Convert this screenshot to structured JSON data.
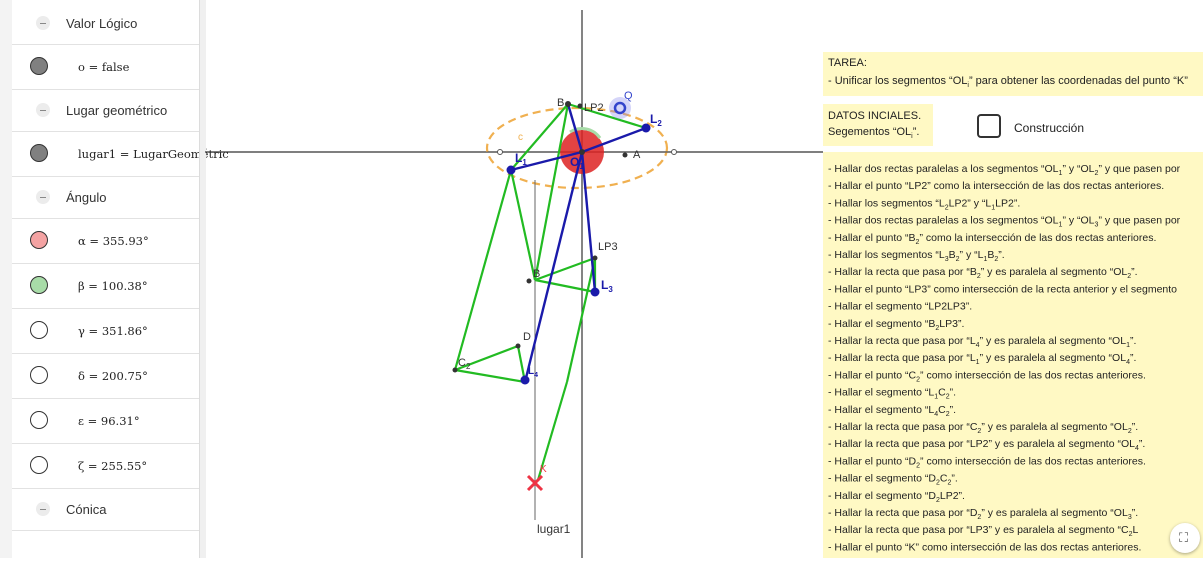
{
  "algebra": {
    "rows": [
      {
        "kind": "header",
        "label": "Valor Lógico"
      },
      {
        "kind": "item",
        "label": "o = false",
        "color": "#808080",
        "filled": true
      },
      {
        "kind": "header",
        "label": "Lugar geométrico"
      },
      {
        "kind": "item",
        "label": "lugar1 = LugarGeométric",
        "color": "#808080",
        "filled": true
      },
      {
        "kind": "header",
        "label": "Ángulo"
      },
      {
        "kind": "item",
        "label": "α = 355.93°",
        "color": "#f4a3a3",
        "filled": true
      },
      {
        "kind": "item",
        "label": "β = 100.38°",
        "color": "#a8dca8",
        "filled": true
      },
      {
        "kind": "item",
        "label": "γ = 351.86°",
        "color": "#ffffff",
        "filled": false
      },
      {
        "kind": "item",
        "label": "δ = 200.75°",
        "color": "#ffffff",
        "filled": false
      },
      {
        "kind": "item",
        "label": "ε = 96.31°",
        "color": "#ffffff",
        "filled": false
      },
      {
        "kind": "item",
        "label": "ζ = 255.55°",
        "color": "#ffffff",
        "filled": false
      },
      {
        "kind": "header",
        "label": "Cónica"
      }
    ]
  },
  "graphics": {
    "points": {
      "B": "B",
      "LP2": "LP2",
      "Q": "Q",
      "L2": "L",
      "L2_sub": "2",
      "L1": "L",
      "L1_sub": "1",
      "O": "O",
      "O_sub": "1",
      "A": "A",
      "LP3": "LP3",
      "B2": "B",
      "L3": "L",
      "L3_sub": "3",
      "D": "D",
      "C2": "C",
      "C2_sub": "2",
      "L4": "L",
      "L4_sub": "4",
      "K": "K",
      "lugar1": "lugar1",
      "c": "c"
    },
    "colors": {
      "green": "#22bb22",
      "blue": "#1a1aaa",
      "orange": "#f0b050",
      "red_fill": "#dd2222",
      "cursor": "#8888ee",
      "K_cross": "#ee3344",
      "axis": "#333333"
    }
  },
  "task": {
    "title": "TAREA:",
    "line_pre": "- Unificar los segmentos “OL",
    "line_sub": "i",
    "line_post": "” para obtener las coordenadas del punto “K”"
  },
  "data_box": {
    "title": "DATOS INCIALES.",
    "line_pre": "Segementos “OL",
    "line_sub": "i",
    "line_post": "”."
  },
  "checkbox": {
    "label": "Construcción",
    "checked": false
  },
  "steps": [
    [
      "- Hallar dos rectas paralelas a los segmentos “OL",
      {
        "s": "1"
      },
      "” y “OL",
      {
        "s": "2"
      },
      "” y que pasen por"
    ],
    [
      "- Hallar el punto “LP2” como la intersección de las dos rectas anteriores."
    ],
    [
      "- Hallar los segmentos “L",
      {
        "s": "2"
      },
      "LP2” y “L",
      {
        "s": "1"
      },
      "LP2”."
    ],
    [
      "- Hallar dos rectas paralelas a los segmentos “OL",
      {
        "s": "1"
      },
      "” y “OL",
      {
        "s": "3"
      },
      "” y que pasen por"
    ],
    [
      "- Hallar el punto “B",
      {
        "s": "2"
      },
      "” como la intersección de las dos rectas anteriores."
    ],
    [
      "- Hallar los segmentos “L",
      {
        "s": "3"
      },
      "B",
      {
        "s": "2"
      },
      "” y “L",
      {
        "s": "1"
      },
      "B",
      {
        "s": "2"
      },
      "”."
    ],
    [
      "- Hallar la recta que pasa por “B",
      {
        "s": "2"
      },
      "” y es paralela al segmento “OL",
      {
        "s": "2"
      },
      "”."
    ],
    [
      "- Hallar el punto “LP3” como intersección de la recta anterior y el segmento"
    ],
    [
      "- Hallar el segmento “LP2LP3”."
    ],
    [
      "- Hallar el segmento “B",
      {
        "s": "2"
      },
      "LP3”."
    ],
    [
      "- Hallar la recta que pasa por “L",
      {
        "s": "4"
      },
      "” y es paralela al segmento “OL",
      {
        "s": "1"
      },
      "”."
    ],
    [
      "- Hallar la recta que pasa por “L",
      {
        "s": "1"
      },
      "” y es paralela al segmento “OL",
      {
        "s": "4"
      },
      "”."
    ],
    [
      "- Hallar el punto “C",
      {
        "s": "2"
      },
      "” como intersección de las dos rectas anteriores."
    ],
    [
      "- Hallar el segmento “L",
      {
        "s": "1"
      },
      "C",
      {
        "s": "2"
      },
      "”."
    ],
    [
      "- Hallar el segmento “L",
      {
        "s": "4"
      },
      "C",
      {
        "s": "2"
      },
      "”."
    ],
    [
      "- Hallar la recta que pasa por “C",
      {
        "s": "2"
      },
      "” y es paralela al segmento “OL",
      {
        "s": "2"
      },
      "”."
    ],
    [
      "- Hallar la recta que pasa por “LP2” y es paralela al segmento “OL",
      {
        "s": "4"
      },
      "”."
    ],
    [
      "- Hallar el punto “D",
      {
        "s": "2"
      },
      "” como intersección de las dos rectas anteriores."
    ],
    [
      "- Hallar el segmento “D",
      {
        "s": "2"
      },
      "C",
      {
        "s": "2"
      },
      "”."
    ],
    [
      "- Hallar el segmento “D",
      {
        "s": "2"
      },
      "LP2”."
    ],
    [
      "- Hallar la recta que pasa por “D",
      {
        "s": "2"
      },
      "” y es paralela al segmento “OL",
      {
        "s": "3"
      },
      "”."
    ],
    [
      "- Hallar la recta que pasa por “LP3” y es paralela al segmento “C",
      {
        "s": "2"
      },
      "L"
    ],
    [
      "- Hallar el punto “K” como intersección de las dos rectas anteriores."
    ]
  ],
  "fullscreen": {
    "icon": "fullscreen-icon",
    "glyph": "⛶"
  }
}
